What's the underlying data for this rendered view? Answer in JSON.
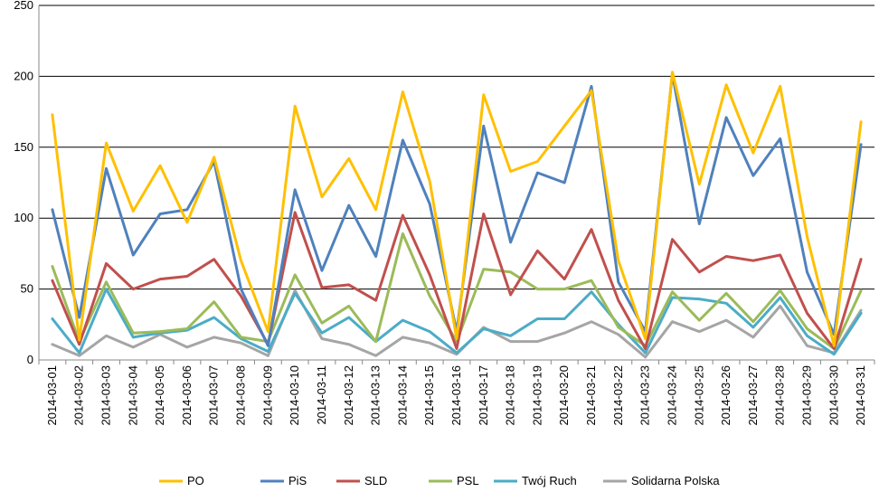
{
  "chart_data": {
    "type": "line",
    "title": "",
    "xlabel": "",
    "ylabel": "",
    "ylim": [
      0,
      250
    ],
    "yticks": [
      0,
      50,
      100,
      150,
      200,
      250
    ],
    "grid": "horizontal",
    "legend_position": "bottom",
    "categories": [
      "2014-03-01",
      "2014-03-02",
      "2014-03-03",
      "2014-03-04",
      "2014-03-05",
      "2014-03-06",
      "2014-03-07",
      "2014-03-08",
      "2014-03-09",
      "2014-03-10",
      "2014-03-11",
      "2014-03-12",
      "2014-03-13",
      "2014-03-14",
      "2014-03-15",
      "2014-03-16",
      "2014-03-17",
      "2014-03-18",
      "2014-03-19",
      "2014-03-20",
      "2014-03-21",
      "2014-03-22",
      "2014-03-23",
      "2014-03-24",
      "2014-03-25",
      "2014-03-26",
      "2014-03-27",
      "2014-03-28",
      "2014-03-29",
      "2014-03-30",
      "2014-03-31"
    ],
    "series": [
      {
        "name": "PO",
        "color": "#FFC000",
        "values": [
          173,
          14,
          153,
          105,
          137,
          97,
          143,
          70,
          20,
          179,
          115,
          142,
          106,
          189,
          126,
          15,
          187,
          133,
          140,
          165,
          190,
          70,
          15,
          203,
          124,
          194,
          146,
          193,
          87,
          10,
          168
        ]
      },
      {
        "name": "PiS",
        "color": "#4F81BD",
        "values": [
          106,
          30,
          135,
          74,
          103,
          106,
          140,
          50,
          10,
          120,
          63,
          109,
          73,
          155,
          110,
          20,
          165,
          83,
          132,
          125,
          193,
          55,
          20,
          202,
          96,
          171,
          130,
          156,
          62,
          18,
          152
        ]
      },
      {
        "name": "SLD",
        "color": "#C0504D",
        "values": [
          56,
          11,
          68,
          50,
          57,
          59,
          71,
          45,
          11,
          104,
          51,
          53,
          42,
          102,
          60,
          8,
          103,
          46,
          77,
          57,
          92,
          42,
          8,
          85,
          62,
          73,
          70,
          74,
          33,
          8,
          71
        ]
      },
      {
        "name": "PSL",
        "color": "#9BBB59",
        "values": [
          66,
          13,
          55,
          19,
          20,
          22,
          41,
          16,
          13,
          60,
          26,
          38,
          13,
          89,
          45,
          13,
          64,
          62,
          50,
          50,
          56,
          23,
          10,
          48,
          28,
          47,
          27,
          49,
          22,
          8,
          49
        ]
      },
      {
        "name": "Twój Ruch",
        "color": "#4BACC6",
        "values": [
          29,
          5,
          50,
          16,
          19,
          21,
          30,
          15,
          6,
          47,
          19,
          30,
          13,
          28,
          20,
          5,
          22,
          17,
          29,
          29,
          48,
          25,
          5,
          44,
          43,
          40,
          23,
          44,
          17,
          4,
          33
        ]
      },
      {
        "name": "Solidarna Polska",
        "color": "#A5A5A5",
        "values": [
          11,
          3,
          17,
          9,
          18,
          9,
          16,
          12,
          3,
          49,
          15,
          11,
          3,
          16,
          12,
          4,
          23,
          13,
          13,
          19,
          27,
          18,
          2,
          27,
          20,
          28,
          16,
          38,
          10,
          5,
          35
        ]
      }
    ]
  }
}
